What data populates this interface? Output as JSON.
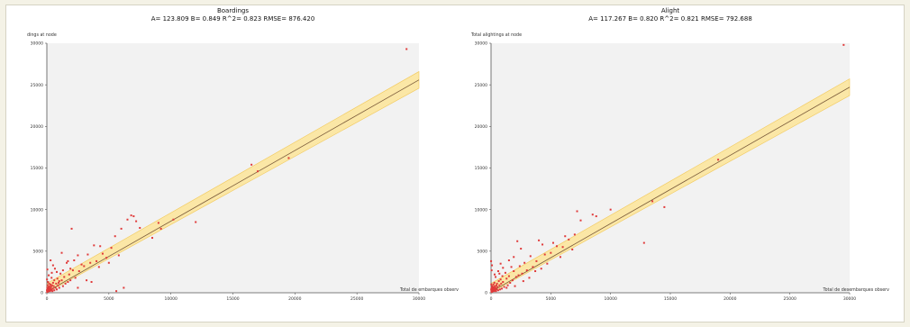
{
  "chart_data": [
    {
      "type": "scatter",
      "title": "Boardings",
      "subtitle": "A= 123.809    B= 0.849    R^2= 0.823    RMSE= 876.420",
      "xlabel": "Total de embarques observ",
      "ylabel": "dings at node",
      "xlim": [
        0,
        30000
      ],
      "ylim": [
        0,
        30000
      ],
      "xticks": [
        "0",
        "5000",
        "10000",
        "15000",
        "20000",
        "25000",
        "30000"
      ],
      "yticks": [
        "0",
        "5000",
        "10000",
        "15000",
        "20000",
        "25000",
        "30000"
      ],
      "grid": false,
      "regression": {
        "a": 123.809,
        "b": 0.849,
        "band": 1000
      },
      "colors": {
        "points": "#e03a3a",
        "line": "#7a5a3a",
        "band": "#fbe7a6",
        "plot_bg": "#f2f2f2"
      },
      "points": [
        [
          29000,
          29300
        ],
        [
          19500,
          16200
        ],
        [
          17000,
          14600
        ],
        [
          16500,
          15400
        ],
        [
          12000,
          8500
        ],
        [
          10200,
          8800
        ],
        [
          9000,
          8400
        ],
        [
          9200,
          7700
        ],
        [
          8500,
          6600
        ],
        [
          7500,
          7800
        ],
        [
          7200,
          8600
        ],
        [
          7000,
          9200
        ],
        [
          6800,
          9300
        ],
        [
          6500,
          8800
        ],
        [
          6000,
          7700
        ],
        [
          5800,
          4500
        ],
        [
          5500,
          6800
        ],
        [
          5200,
          5400
        ],
        [
          4800,
          4200
        ],
        [
          4500,
          4700
        ],
        [
          4300,
          5600
        ],
        [
          4000,
          3800
        ],
        [
          3800,
          5700
        ],
        [
          3500,
          3600
        ],
        [
          3300,
          4600
        ],
        [
          3000,
          3200
        ],
        [
          2800,
          3400
        ],
        [
          2600,
          2600
        ],
        [
          2500,
          4500
        ],
        [
          2300,
          1800
        ],
        [
          2100,
          2700
        ],
        [
          2000,
          7700
        ],
        [
          1900,
          1500
        ],
        [
          1800,
          2200
        ],
        [
          1700,
          1300
        ],
        [
          1600,
          3600
        ],
        [
          1500,
          1100
        ],
        [
          1400,
          1900
        ],
        [
          1300,
          800
        ],
        [
          1200,
          1500
        ],
        [
          1100,
          2300
        ],
        [
          1000,
          600
        ],
        [
          950,
          1200
        ],
        [
          900,
          900
        ],
        [
          850,
          1700
        ],
        [
          800,
          400
        ],
        [
          750,
          1100
        ],
        [
          700,
          600
        ],
        [
          650,
          2900
        ],
        [
          600,
          300
        ],
        [
          550,
          800
        ],
        [
          500,
          1200
        ],
        [
          480,
          500
        ],
        [
          450,
          200
        ],
        [
          420,
          900
        ],
        [
          400,
          400
        ],
        [
          380,
          1800
        ],
        [
          350,
          700
        ],
        [
          330,
          300
        ],
        [
          300,
          1000
        ],
        [
          280,
          500
        ],
        [
          260,
          200
        ],
        [
          240,
          800
        ],
        [
          220,
          400
        ],
        [
          200,
          600
        ],
        [
          180,
          1100
        ],
        [
          160,
          300
        ],
        [
          140,
          700
        ],
        [
          120,
          200
        ],
        [
          100,
          500
        ],
        [
          90,
          1300
        ],
        [
          80,
          150
        ],
        [
          70,
          400
        ],
        [
          60,
          900
        ],
        [
          50,
          200
        ],
        [
          40,
          2800
        ],
        [
          30,
          600
        ],
        [
          20,
          100
        ],
        [
          10,
          1600
        ],
        [
          5,
          300
        ],
        [
          2500,
          600
        ],
        [
          3200,
          1500
        ],
        [
          3600,
          1300
        ],
        [
          4200,
          3100
        ],
        [
          5000,
          3600
        ],
        [
          5600,
          200
        ],
        [
          6200,
          600
        ],
        [
          1700,
          3800
        ],
        [
          2200,
          3900
        ],
        [
          1200,
          4800
        ],
        [
          500,
          3300
        ],
        [
          800,
          2500
        ],
        [
          300,
          3900
        ],
        [
          150,
          2100
        ],
        [
          600,
          1500
        ],
        [
          400,
          2400
        ],
        [
          1000,
          1400
        ],
        [
          1300,
          2700
        ],
        [
          1900,
          2900
        ]
      ]
    },
    {
      "type": "scatter",
      "title": "Alight",
      "subtitle": "A= 117.267    B= 0.820    R^2= 0.821    RMSE= 792.688",
      "xlabel": "Total de desembarques observ",
      "ylabel": "Total alightings at node",
      "xlim": [
        0,
        30000
      ],
      "ylim": [
        0,
        30000
      ],
      "xticks": [
        "0",
        "5000",
        "10000",
        "15000",
        "20000",
        "25000",
        "30000"
      ],
      "yticks": [
        "0",
        "5000",
        "10000",
        "15000",
        "20000",
        "25000",
        "30000"
      ],
      "grid": false,
      "regression": {
        "a": 117.267,
        "b": 0.82,
        "band": 1000
      },
      "colors": {
        "points": "#e03a3a",
        "line": "#7a5a3a",
        "band": "#fbe7a6",
        "plot_bg": "#f2f2f2"
      },
      "points": [
        [
          29500,
          29800
        ],
        [
          19000,
          16000
        ],
        [
          14500,
          10300
        ],
        [
          13500,
          11000
        ],
        [
          12800,
          6000
        ],
        [
          10000,
          10000
        ],
        [
          8800,
          9200
        ],
        [
          8500,
          9400
        ],
        [
          7500,
          8700
        ],
        [
          7200,
          9800
        ],
        [
          7000,
          7000
        ],
        [
          6800,
          5200
        ],
        [
          6500,
          6400
        ],
        [
          6200,
          6800
        ],
        [
          6000,
          5500
        ],
        [
          5800,
          4300
        ],
        [
          5500,
          5600
        ],
        [
          5200,
          6000
        ],
        [
          5000,
          4800
        ],
        [
          4700,
          3500
        ],
        [
          4500,
          4600
        ],
        [
          4300,
          5800
        ],
        [
          4000,
          6300
        ],
        [
          3800,
          3800
        ],
        [
          3500,
          3100
        ],
        [
          3300,
          4400
        ],
        [
          3000,
          2700
        ],
        [
          2800,
          3600
        ],
        [
          2600,
          2300
        ],
        [
          2400,
          3200
        ],
        [
          2200,
          6200
        ],
        [
          2100,
          1900
        ],
        [
          1900,
          2600
        ],
        [
          1800,
          1500
        ],
        [
          1700,
          3100
        ],
        [
          1600,
          1200
        ],
        [
          1500,
          2000
        ],
        [
          1400,
          900
        ],
        [
          1300,
          1700
        ],
        [
          1200,
          2400
        ],
        [
          1100,
          700
        ],
        [
          1000,
          1300
        ],
        [
          950,
          2000
        ],
        [
          900,
          500
        ],
        [
          850,
          1100
        ],
        [
          800,
          1600
        ],
        [
          750,
          400
        ],
        [
          700,
          900
        ],
        [
          650,
          1400
        ],
        [
          600,
          300
        ],
        [
          550,
          700
        ],
        [
          500,
          1100
        ],
        [
          480,
          400
        ],
        [
          450,
          900
        ],
        [
          420,
          200
        ],
        [
          400,
          600
        ],
        [
          380,
          1900
        ],
        [
          350,
          300
        ],
        [
          330,
          800
        ],
        [
          300,
          500
        ],
        [
          280,
          1200
        ],
        [
          260,
          200
        ],
        [
          240,
          700
        ],
        [
          220,
          400
        ],
        [
          200,
          1000
        ],
        [
          180,
          300
        ],
        [
          160,
          600
        ],
        [
          140,
          200
        ],
        [
          120,
          500
        ],
        [
          100,
          800
        ],
        [
          90,
          150
        ],
        [
          80,
          3300
        ],
        [
          70,
          400
        ],
        [
          60,
          100
        ],
        [
          50,
          2700
        ],
        [
          40,
          600
        ],
        [
          30,
          200
        ],
        [
          20,
          1000
        ],
        [
          10,
          400
        ],
        [
          5,
          3800
        ],
        [
          2000,
          800
        ],
        [
          2700,
          1400
        ],
        [
          3200,
          1800
        ],
        [
          3700,
          2600
        ],
        [
          4200,
          2900
        ],
        [
          1000,
          3000
        ],
        [
          600,
          2600
        ],
        [
          1500,
          3900
        ],
        [
          800,
          3500
        ],
        [
          300,
          2200
        ],
        [
          1300,
          600
        ],
        [
          700,
          2300
        ],
        [
          2300,
          2100
        ],
        [
          1900,
          4300
        ],
        [
          2500,
          5300
        ]
      ]
    }
  ]
}
